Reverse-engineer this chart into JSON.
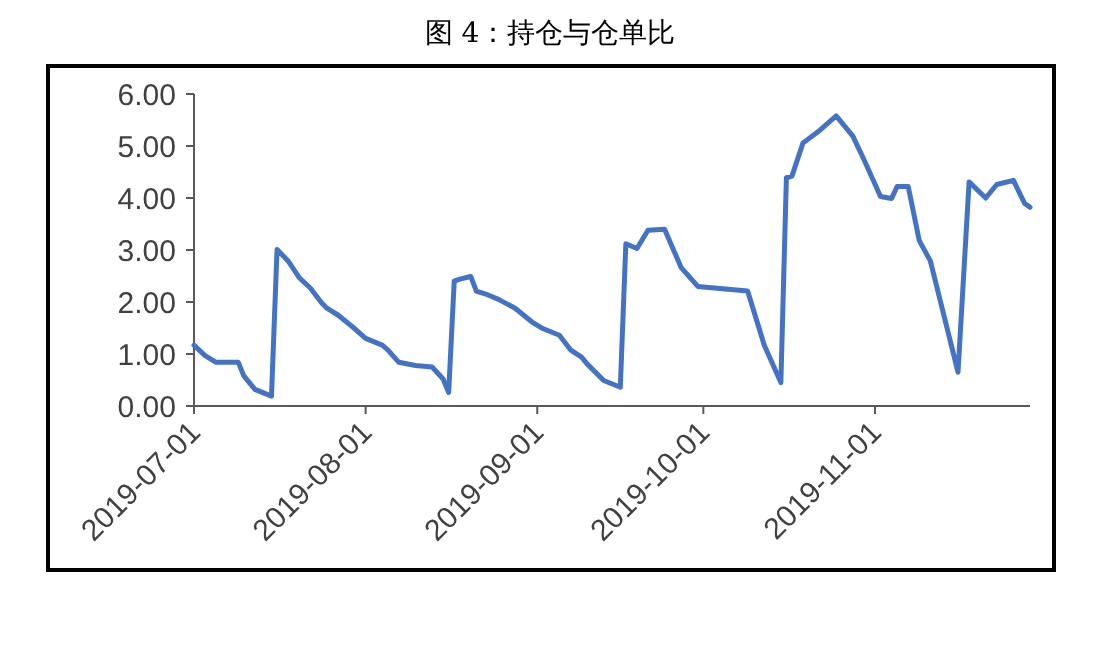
{
  "chart_data": {
    "type": "line",
    "title": "图 4：持仓与仓单比",
    "color": "#4472c4",
    "grid": false,
    "marker": "none",
    "line_style": "solid",
    "x": [
      "2019-07-01",
      "2019-07-03",
      "2019-07-05",
      "2019-07-09",
      "2019-07-10",
      "2019-07-12",
      "2019-07-15",
      "2019-07-16",
      "2019-07-18",
      "2019-07-20",
      "2019-07-22",
      "2019-07-24",
      "2019-07-25",
      "2019-07-27",
      "2019-07-30",
      "2019-08-01",
      "2019-08-04",
      "2019-08-05",
      "2019-08-07",
      "2019-08-10",
      "2019-08-13",
      "2019-08-15",
      "2019-08-16",
      "2019-08-17",
      "2019-08-18",
      "2019-08-20",
      "2019-08-21",
      "2019-08-23",
      "2019-08-25",
      "2019-08-28",
      "2019-08-31",
      "2019-09-02",
      "2019-09-05",
      "2019-09-07",
      "2019-09-09",
      "2019-09-10",
      "2019-09-13",
      "2019-09-16",
      "2019-09-17",
      "2019-09-19",
      "2019-09-21",
      "2019-09-24",
      "2019-09-27",
      "2019-09-30",
      "2019-10-09",
      "2019-10-12",
      "2019-10-15",
      "2019-10-16",
      "2019-10-17",
      "2019-10-19",
      "2019-10-22",
      "2019-10-25",
      "2019-10-28",
      "2019-10-30",
      "2019-11-02",
      "2019-11-04",
      "2019-11-05",
      "2019-11-07",
      "2019-11-09",
      "2019-11-11",
      "2019-11-16",
      "2019-11-18",
      "2019-11-21",
      "2019-11-23",
      "2019-11-26",
      "2019-11-28",
      "2019-11-29"
    ],
    "values": [
      1.17,
      0.97,
      0.84,
      0.84,
      0.58,
      0.32,
      0.19,
      3.01,
      2.79,
      2.47,
      2.27,
      1.99,
      1.88,
      1.75,
      1.49,
      1.3,
      1.17,
      1.08,
      0.84,
      0.78,
      0.75,
      0.52,
      0.26,
      2.4,
      2.44,
      2.49,
      2.21,
      2.14,
      2.05,
      1.88,
      1.62,
      1.49,
      1.36,
      1.08,
      0.94,
      0.81,
      0.49,
      0.36,
      3.12,
      3.03,
      3.38,
      3.4,
      2.66,
      2.3,
      2.21,
      1.17,
      0.45,
      4.39,
      4.42,
      5.06,
      5.3,
      5.58,
      5.19,
      4.74,
      4.03,
      3.99,
      4.22,
      4.22,
      3.18,
      2.79,
      0.65,
      4.31,
      4.0,
      4.26,
      4.34,
      3.9,
      3.82
    ],
    "xlim": [
      "2019-07-01",
      "2019-11-29"
    ],
    "xticks": [
      "2019-07-01",
      "2019-08-01",
      "2019-09-01",
      "2019-10-01",
      "2019-11-01"
    ],
    "ylim": [
      0,
      6
    ],
    "yticks": [
      {
        "value": 0,
        "label": "0.00"
      },
      {
        "value": 1,
        "label": "1.00"
      },
      {
        "value": 2,
        "label": "2.00"
      },
      {
        "value": 3,
        "label": "3.00"
      },
      {
        "value": 4,
        "label": "4.00"
      },
      {
        "value": 5,
        "label": "5.00"
      },
      {
        "value": 6,
        "label": "6.00"
      }
    ]
  }
}
